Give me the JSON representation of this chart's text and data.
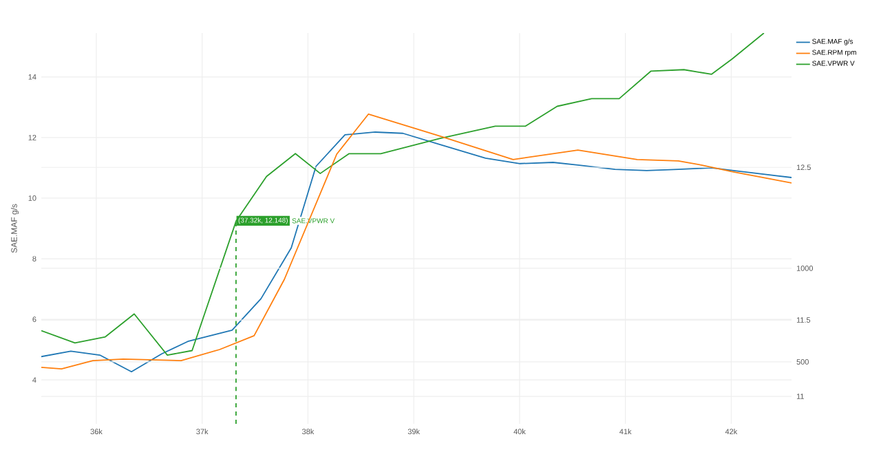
{
  "chart_data": {
    "type": "line",
    "ylabel": "SAE.MAF g/s",
    "xlim": [
      35480,
      42570
    ],
    "xticks": [
      {
        "value": 36000,
        "label": "36k"
      },
      {
        "value": 37000,
        "label": "37k"
      },
      {
        "value": 38000,
        "label": "38k"
      },
      {
        "value": 39000,
        "label": "39k"
      },
      {
        "value": 40000,
        "label": "40k"
      },
      {
        "value": 41000,
        "label": "41k"
      },
      {
        "value": 42000,
        "label": "42k"
      }
    ],
    "ylim": [
      2.55,
      15.45
    ],
    "yticks": [
      4,
      6,
      8,
      10,
      12,
      14
    ],
    "y2lim": [
      10.82,
      13.38
    ],
    "y2ticks": [
      11,
      11.5,
      12.5
    ],
    "y3lim": [
      169,
      2257
    ],
    "y3ticks": [
      500,
      1000
    ],
    "grid": true,
    "legend": "top right",
    "marker": "none",
    "line_style": "solid",
    "series": [
      {
        "name": "SAE.MAF g/s",
        "color": "#1f77b4",
        "axis": "y",
        "x": [
          35480,
          35759,
          36033,
          36332,
          36618,
          36865,
          37283,
          37556,
          37842,
          38076,
          38350,
          38636,
          38897,
          39249,
          39678,
          40004,
          40316,
          40551,
          40902,
          41201,
          41500,
          41813,
          42021,
          42570
        ],
        "values": [
          4.77,
          4.95,
          4.82,
          4.27,
          4.86,
          5.27,
          5.64,
          6.68,
          8.36,
          11.05,
          12.09,
          12.18,
          12.14,
          11.77,
          11.32,
          11.14,
          11.18,
          11.09,
          10.95,
          10.91,
          10.95,
          11.0,
          10.91,
          10.68
        ]
      },
      {
        "name": "SAE.RPM rpm",
        "color": "#ff7f0e",
        "axis": "y3",
        "x": [
          35480,
          35671,
          35967,
          36254,
          36801,
          37165,
          37491,
          37777,
          38272,
          38572,
          39249,
          39939,
          40551,
          41111,
          41500,
          41725,
          42021,
          42570
        ],
        "values": [
          471,
          463,
          507,
          515,
          507,
          566,
          640,
          941,
          1610,
          1824,
          1706,
          1581,
          1632,
          1581,
          1574,
          1551,
          1515,
          1456
        ]
      },
      {
        "name": "SAE.VPWR V",
        "color": "#2ca02c",
        "axis": "y2",
        "x": [
          35480,
          35798,
          36085,
          36358,
          36671,
          36905,
          37322,
          37608,
          37881,
          38116,
          38389,
          38688,
          39249,
          39770,
          40056,
          40355,
          40681,
          40941,
          41240,
          41553,
          41813,
          42008,
          42309
        ],
        "values": [
          11.43,
          11.35,
          11.39,
          11.54,
          11.27,
          11.3,
          12.15,
          12.44,
          12.59,
          12.46,
          12.59,
          12.59,
          12.69,
          12.77,
          12.77,
          12.9,
          12.95,
          12.95,
          13.13,
          13.14,
          13.11,
          13.21,
          13.38
        ]
      }
    ],
    "ref_lines": [
      {
        "axis": "x",
        "value": 37320,
        "color": "#2ca02c",
        "line_style": "dashed"
      }
    ],
    "annotations": [
      "(37.32k, 12.148)",
      "SAE.VPWR V"
    ]
  }
}
